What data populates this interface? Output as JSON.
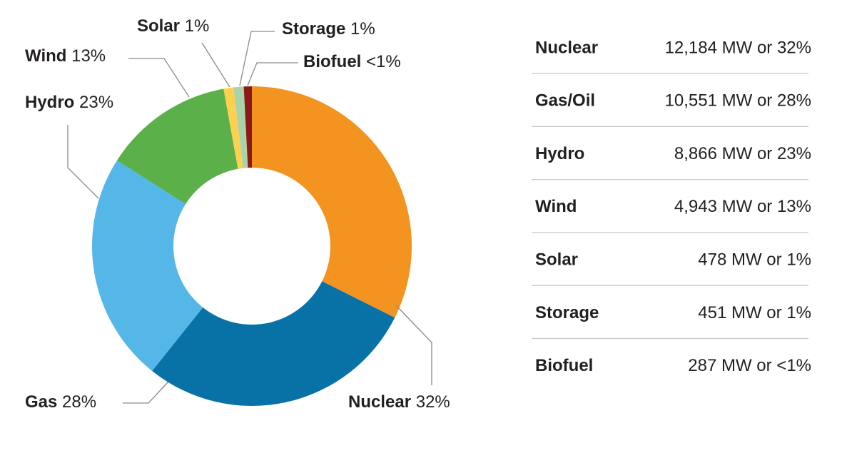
{
  "chart_data": {
    "type": "donut",
    "categories": [
      "Nuclear",
      "Gas",
      "Hydro",
      "Wind",
      "Solar",
      "Storage",
      "Biofuel"
    ],
    "values": [
      32,
      28,
      23,
      13,
      1,
      1,
      0.8
    ],
    "value_labels": [
      "32%",
      "28%",
      "23%",
      "13%",
      "1%",
      "1%",
      "<1%"
    ],
    "colors": [
      "#f39320",
      "#0872a7",
      "#55b6e8",
      "#5bb04a",
      "#fdd04f",
      "#a9d3ab",
      "#8b1a16"
    ]
  },
  "table": {
    "rows": [
      [
        "Nuclear",
        "12,184 MW or 32%"
      ],
      [
        "Gas/Oil",
        "10,551 MW or 28%"
      ],
      [
        "Hydro",
        "8,866 MW or 23%"
      ],
      [
        "Wind",
        "4,943 MW or 13%"
      ],
      [
        "Solar",
        "478 MW or 1%"
      ],
      [
        "Storage",
        "451 MW or 1%"
      ],
      [
        "Biofuel",
        "287 MW or <1%"
      ]
    ]
  }
}
